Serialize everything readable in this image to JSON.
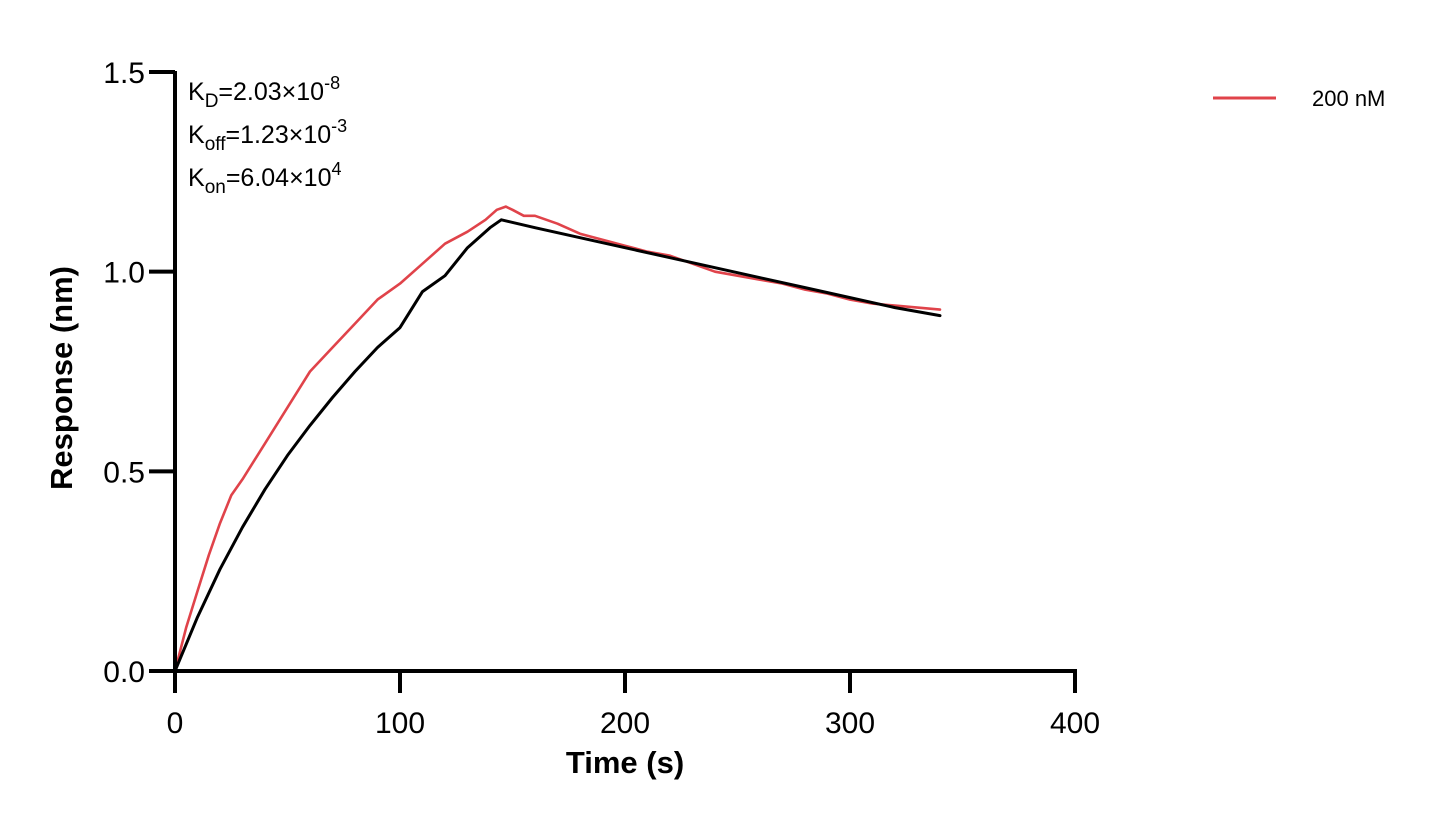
{
  "chart_data": {
    "type": "line",
    "title": "",
    "xlabel": "Time (s)",
    "ylabel": "Response (nm)",
    "xlim": [
      0,
      400
    ],
    "ylim": [
      0,
      1.5
    ],
    "xticks": [
      0,
      100,
      200,
      300,
      400
    ],
    "xtick_labels": [
      "0",
      "100",
      "200",
      "300",
      "400"
    ],
    "yticks": [
      0,
      0.5,
      1.0,
      1.5
    ],
    "ytick_labels": [
      "0.0",
      "0.5",
      "1.0",
      "1.5"
    ],
    "grid": false,
    "legend_position": "top-right",
    "annotations": [
      {
        "base": "K",
        "sub": "D",
        "value": "=2.03×10",
        "exp": "-8"
      },
      {
        "base": "K",
        "sub": "off",
        "value": "=1.23×10",
        "exp": "-3"
      },
      {
        "base": "K",
        "sub": "on",
        "value": "=6.04×10",
        "exp": "4"
      }
    ],
    "series": [
      {
        "name": "200 nM",
        "color": "#e0434a",
        "x": [
          0,
          5,
          10,
          15,
          20,
          25,
          30,
          40,
          50,
          60,
          70,
          80,
          90,
          100,
          110,
          120,
          130,
          138,
          143,
          147,
          150,
          155,
          160,
          170,
          180,
          190,
          200,
          210,
          220,
          230,
          240,
          250,
          260,
          270,
          280,
          290,
          300,
          310,
          320,
          330,
          340
        ],
        "y": [
          0,
          0.11,
          0.2,
          0.29,
          0.37,
          0.44,
          0.48,
          0.57,
          0.66,
          0.75,
          0.81,
          0.87,
          0.93,
          0.97,
          1.02,
          1.07,
          1.1,
          1.13,
          1.155,
          1.163,
          1.155,
          1.14,
          1.14,
          1.12,
          1.095,
          1.08,
          1.065,
          1.05,
          1.04,
          1.02,
          1.0,
          0.99,
          0.98,
          0.97,
          0.955,
          0.945,
          0.93,
          0.92,
          0.915,
          0.91,
          0.905
        ]
      },
      {
        "name": "",
        "color": "#000000",
        "type": "fit",
        "x": [
          0,
          10,
          20,
          30,
          40,
          50,
          60,
          70,
          80,
          90,
          100,
          110,
          120,
          130,
          140,
          145,
          160,
          180,
          200,
          220,
          240,
          260,
          280,
          300,
          320,
          340
        ],
        "y": [
          0,
          0.135,
          0.255,
          0.36,
          0.455,
          0.54,
          0.615,
          0.685,
          0.75,
          0.81,
          0.86,
          0.95,
          0.99,
          1.06,
          1.11,
          1.13,
          1.11,
          1.085,
          1.06,
          1.035,
          1.01,
          0.985,
          0.96,
          0.935,
          0.91,
          0.89
        ]
      }
    ]
  }
}
